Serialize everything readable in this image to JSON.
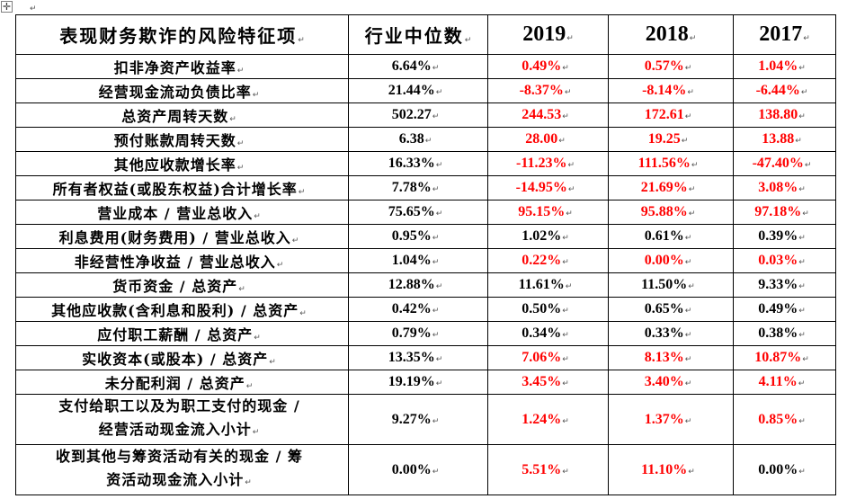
{
  "table": {
    "header": [
      "表现财务欺诈的风险特征项",
      "行业中位数",
      "2019",
      "2018",
      "2017"
    ],
    "rows": [
      {
        "label": "扣非净资产收益率",
        "median": "6.64%",
        "y2019": "0.49%",
        "y2018": "0.57%",
        "y2017": "1.04%"
      },
      {
        "label": "经营现金流动负债比率",
        "median": "21.44%",
        "y2019": "-8.37%",
        "y2018": "-8.14%",
        "y2017": "-6.44%"
      },
      {
        "label": "总资产周转天数",
        "median": "502.27",
        "y2019": "244.53",
        "y2018": "172.61",
        "y2017": "138.80"
      },
      {
        "label": "预付账款周转天数",
        "median": "6.38",
        "y2019": "28.00",
        "y2018": "19.25",
        "y2017": "13.88"
      },
      {
        "label": "其他应收款增长率",
        "median": "16.33%",
        "y2019": "-11.23%",
        "y2018": "111.56%",
        "y2017": "-47.40%"
      },
      {
        "label": "所有者权益(或股东权益)合计增长率",
        "median": "7.78%",
        "y2019": "-14.95%",
        "y2018": "21.69%",
        "y2017": "3.08%"
      },
      {
        "label": "营业成本 / 营业总收入",
        "median": "75.65%",
        "y2019": "95.15%",
        "y2018": "95.88%",
        "y2017": "97.18%"
      },
      {
        "label": "利息费用(财务费用) / 营业总收入",
        "median": "0.95%",
        "y2019": "1.02%",
        "y2018": "0.61%",
        "y2017": "0.39%"
      },
      {
        "label": "非经营性净收益 / 营业总收入",
        "median": "1.04%",
        "y2019": "0.22%",
        "y2018": "0.00%",
        "y2017": "0.03%"
      },
      {
        "label": "货币资金 / 总资产",
        "median": "12.88%",
        "y2019": "11.61%",
        "y2018": "11.50%",
        "y2017": "9.33%"
      },
      {
        "label": "其他应收款(含利息和股利) / 总资产",
        "median": "0.42%",
        "y2019": "0.50%",
        "y2018": "0.65%",
        "y2017": "0.49%"
      },
      {
        "label": "应付职工薪酬 / 总资产",
        "median": "0.79%",
        "y2019": "0.34%",
        "y2018": "0.33%",
        "y2017": "0.38%"
      },
      {
        "label": "实收资本(或股本) / 总资产",
        "median": "13.35%",
        "y2019": "7.06%",
        "y2018": "8.13%",
        "y2017": "10.87%"
      },
      {
        "label": "未分配利润 / 总资产",
        "median": "19.19%",
        "y2019": "3.45%",
        "y2018": "3.40%",
        "y2017": "4.11%"
      },
      {
        "label_line1": "支付给职工以及为职工支付的现金 /",
        "label_line2": "经营活动现金流入小计",
        "median": "9.27%",
        "y2019": "1.24%",
        "y2018": "1.37%",
        "y2017": "0.85%"
      },
      {
        "label_line1": "收到其他与筹资活动有关的现金 / 筹",
        "label_line2": "资活动现金流入小计",
        "median": "0.00%",
        "y2019": "5.51%",
        "y2018": "11.10%",
        "y2017": "0.00%"
      }
    ]
  },
  "colors": {
    "highlight": "#ff0000",
    "normal": "#000000"
  },
  "icons": {
    "move_handle": "move-arrows-icon",
    "paragraph_mark": "return-mark-icon"
  }
}
